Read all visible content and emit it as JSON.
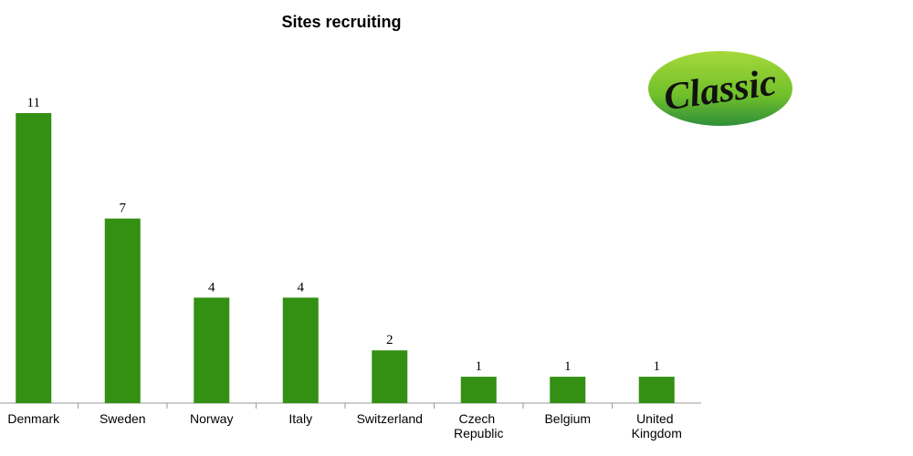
{
  "chart_data": {
    "type": "bar",
    "title": "Sites recruiting",
    "categories": [
      "Denmark",
      "Sweden",
      "Norway",
      "Italy",
      "Switzerland",
      "Czech Republic",
      "Belgium",
      "United Kingdom"
    ],
    "values": [
      11,
      7,
      4,
      4,
      2,
      1,
      1,
      1
    ],
    "color": "#339012"
  },
  "logo": "Classic"
}
